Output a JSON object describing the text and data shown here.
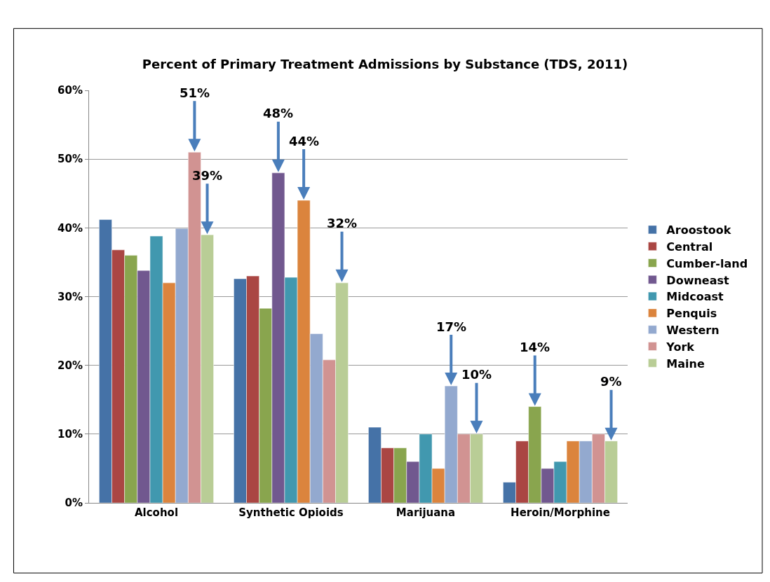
{
  "chart_data": {
    "type": "bar",
    "title": "Percent of Primary Treatment Admissions by Substance (TDS, 2011)",
    "categories": [
      "Alcohol",
      "Synthetic Opioids",
      "Marijuana",
      "Heroin/Morphine"
    ],
    "series": [
      {
        "name": "Aroostook",
        "color": "#4572a7",
        "values": [
          41.2,
          32.6,
          11,
          3
        ]
      },
      {
        "name": "Central",
        "color": "#aa4643",
        "values": [
          36.8,
          33.0,
          8,
          9
        ]
      },
      {
        "name": "Cumber-land",
        "color": "#89a54e",
        "values": [
          36,
          28.3,
          8,
          14
        ],
        "value_labels": [
          null,
          null,
          null,
          "14%"
        ]
      },
      {
        "name": "Downeast",
        "color": "#71588f",
        "values": [
          33.8,
          48,
          6,
          5
        ],
        "value_labels": [
          null,
          "48%",
          null,
          null
        ]
      },
      {
        "name": "Midcoast",
        "color": "#4198af",
        "values": [
          38.8,
          32.8,
          10,
          6
        ]
      },
      {
        "name": "Penquis",
        "color": "#db843d",
        "values": [
          32,
          44,
          5,
          9
        ],
        "value_labels": [
          null,
          "44%",
          null,
          null
        ]
      },
      {
        "name": "Western",
        "color": "#93a9cf",
        "values": [
          39.9,
          24.6,
          17,
          9
        ],
        "value_labels": [
          null,
          null,
          "17%",
          null
        ]
      },
      {
        "name": "York",
        "color": "#d19392",
        "values": [
          51,
          20.8,
          10,
          10
        ],
        "value_labels": [
          "51%",
          null,
          null,
          null
        ]
      },
      {
        "name": "Maine",
        "color": "#b9cd96",
        "values": [
          39,
          32,
          10,
          9
        ],
        "value_labels": [
          "39%",
          "32%",
          "10%",
          "9%"
        ]
      }
    ],
    "ylim": [
      0,
      60
    ],
    "yticks": [
      {
        "value": 0,
        "label": "0%"
      },
      {
        "value": 10,
        "label": "10%"
      },
      {
        "value": 20,
        "label": "20%"
      },
      {
        "value": 30,
        "label": "30%"
      },
      {
        "value": 40,
        "label": "40%"
      },
      {
        "value": 50,
        "label": "50%"
      },
      {
        "value": 60,
        "label": "60%"
      }
    ],
    "grid": "y",
    "legend": "right"
  }
}
